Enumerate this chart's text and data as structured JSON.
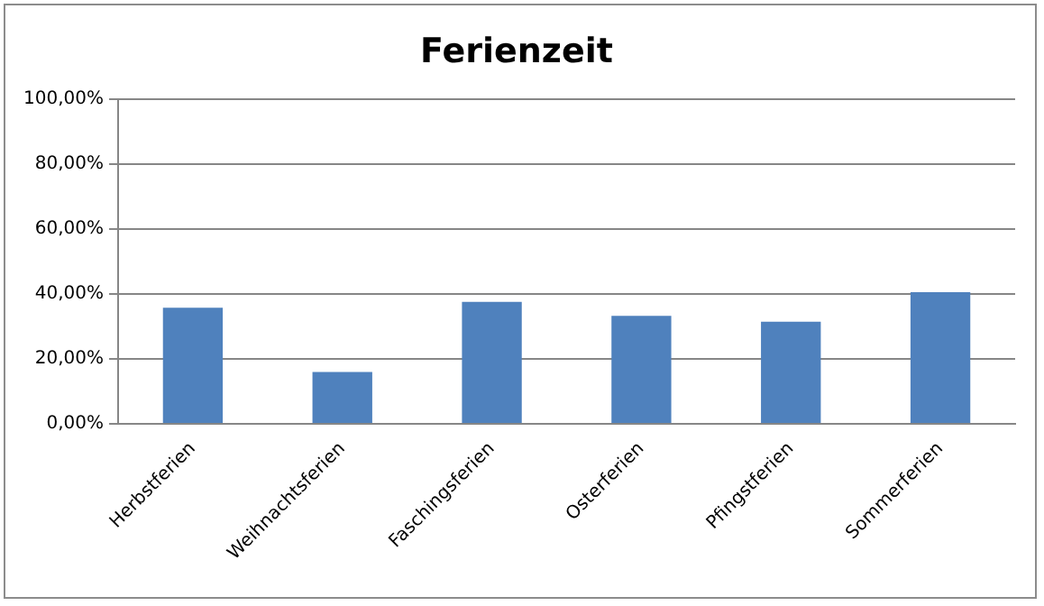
{
  "chart_data": {
    "type": "bar",
    "title": "Ferienzeit",
    "categories": [
      "Herbstferien",
      "Weihnachtsferien",
      "Faschingsferien",
      "Osterferien",
      "Pfingstferien",
      "Sommerferien"
    ],
    "values": [
      35.7,
      15.9,
      37.5,
      33.2,
      31.4,
      40.5
    ],
    "color": "#4f81bd",
    "ylim": [
      0,
      100
    ],
    "yticks": [
      {
        "value": 0,
        "label": "0,00%"
      },
      {
        "value": 20,
        "label": "20,00%"
      },
      {
        "value": 40,
        "label": "40,00%"
      },
      {
        "value": 60,
        "label": "60,00%"
      },
      {
        "value": 80,
        "label": "80,00%"
      },
      {
        "value": 100,
        "label": "100,00%"
      }
    ],
    "grid": "y",
    "legend": false
  }
}
